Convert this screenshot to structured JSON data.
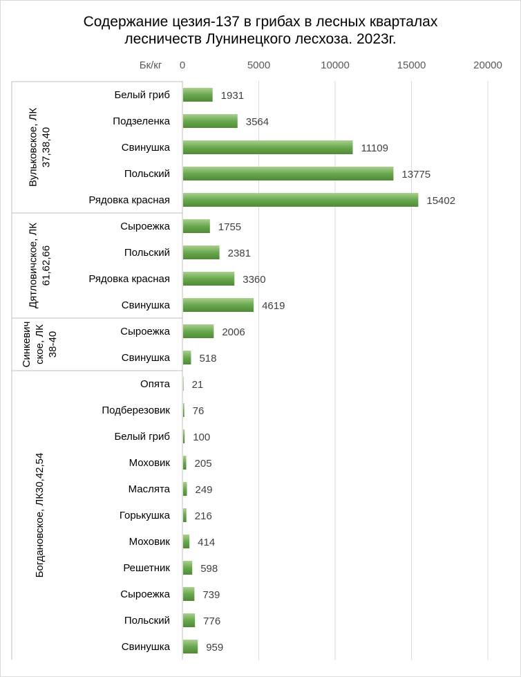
{
  "chart_data": {
    "type": "bar",
    "orientation": "horizontal",
    "title_lines": [
      "Содержание цезия-137 в грибах в лесных кварталах",
      "лесничеств Лунинецкого лесхоза. 2023г."
    ],
    "unit_label": "Бк/кг",
    "xlim": [
      0,
      20000
    ],
    "ticks": [
      "0",
      "5000",
      "10000",
      "15000",
      "20000"
    ],
    "grid": true,
    "legend": "none",
    "bar_color": "#6aa84f",
    "groups": [
      {
        "label_lines": [
          "Вульковское, ЛК",
          "37,38,40"
        ],
        "items": [
          {
            "category": "Белый гриб",
            "value": 1931
          },
          {
            "category": "Подзеленка",
            "value": 3564
          },
          {
            "category": "Свинушка",
            "value": 11109
          },
          {
            "category": "Польский",
            "value": 13775
          },
          {
            "category": "Рядовка красная",
            "value": 15402
          }
        ]
      },
      {
        "label_lines": [
          "Дятловичское, ЛК",
          "61,62,66"
        ],
        "items": [
          {
            "category": "Сыроежка",
            "value": 1755
          },
          {
            "category": "Польский",
            "value": 2381
          },
          {
            "category": "Рядовка красная",
            "value": 3360
          },
          {
            "category": "Свинушка",
            "value": 4619
          }
        ]
      },
      {
        "label_lines": [
          "Синкевич",
          "ское, ЛК",
          "38-40"
        ],
        "items": [
          {
            "category": "Сыроежка",
            "value": 2006
          },
          {
            "category": "Свинушка",
            "value": 518
          }
        ]
      },
      {
        "label_lines": [
          "Богдановское, ЛК30,42,54"
        ],
        "items": [
          {
            "category": "Опята",
            "value": 21
          },
          {
            "category": "Подберезовик",
            "value": 76
          },
          {
            "category": "Белый гриб",
            "value": 100
          },
          {
            "category": "Моховик",
            "value": 205
          },
          {
            "category": "Маслята",
            "value": 249
          },
          {
            "category": "Горькушка",
            "value": 216
          },
          {
            "category": "Моховик",
            "value": 414
          },
          {
            "category": "Решетник",
            "value": 598
          },
          {
            "category": "Сыроежка",
            "value": 739
          },
          {
            "category": "Польский",
            "value": 776
          },
          {
            "category": "Свинушка",
            "value": 959
          }
        ]
      }
    ]
  }
}
